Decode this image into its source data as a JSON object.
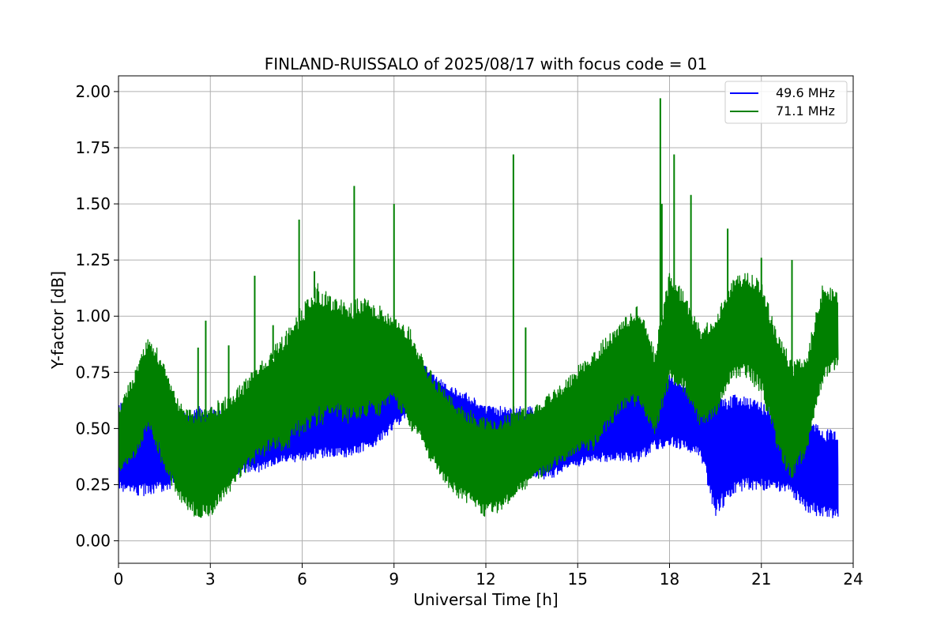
{
  "chart_data": {
    "type": "line",
    "title": "FINLAND-RUISSALO of 2025/08/17 with focus code = 01",
    "xlabel": "Universal Time [h]",
    "ylabel": "Y-factor [dB]",
    "xlim": [
      0,
      24
    ],
    "ylim": [
      -0.1,
      2.07
    ],
    "x_ticks": [
      0,
      3,
      6,
      9,
      12,
      15,
      18,
      21,
      24
    ],
    "x_tick_labels": [
      "0",
      "3",
      "6",
      "9",
      "12",
      "15",
      "18",
      "21",
      "24"
    ],
    "y_ticks": [
      0.0,
      0.25,
      0.5,
      0.75,
      1.0,
      1.25,
      1.5,
      1.75,
      2.0
    ],
    "y_tick_labels": [
      "0.00",
      "0.25",
      "0.50",
      "0.75",
      "1.00",
      "1.25",
      "1.50",
      "1.75",
      "2.00"
    ],
    "grid": true,
    "legend_position": "top-right",
    "series": [
      {
        "name": "49.6 MHz",
        "color": "#0000ff",
        "t": [
          0,
          0.5,
          1,
          1.5,
          2,
          2.5,
          3,
          3.5,
          4,
          4.5,
          5,
          5.5,
          6,
          6.5,
          7,
          7.5,
          8,
          8.5,
          9,
          9.5,
          10,
          10.5,
          11,
          11.5,
          12,
          12.5,
          13,
          13.5,
          14,
          14.5,
          15,
          15.5,
          16,
          16.5,
          17,
          17.5,
          18,
          18.5,
          19,
          19.5,
          20,
          20.5,
          21,
          21.5,
          22,
          22.5,
          23,
          23.5
        ],
        "lower": [
          0.22,
          0.2,
          0.2,
          0.22,
          0.25,
          0.25,
          0.25,
          0.27,
          0.3,
          0.3,
          0.33,
          0.35,
          0.35,
          0.37,
          0.37,
          0.37,
          0.4,
          0.43,
          0.5,
          0.55,
          0.6,
          0.5,
          0.45,
          0.35,
          0.3,
          0.27,
          0.27,
          0.27,
          0.27,
          0.3,
          0.33,
          0.35,
          0.35,
          0.35,
          0.35,
          0.4,
          0.42,
          0.4,
          0.38,
          0.1,
          0.2,
          0.22,
          0.22,
          0.22,
          0.2,
          0.12,
          0.1,
          0.1
        ],
        "upper": [
          0.62,
          0.6,
          0.6,
          0.57,
          0.57,
          0.6,
          0.6,
          0.58,
          0.58,
          0.6,
          0.62,
          0.63,
          0.65,
          0.7,
          0.7,
          0.7,
          0.7,
          0.75,
          0.8,
          0.78,
          0.78,
          0.72,
          0.68,
          0.65,
          0.6,
          0.6,
          0.6,
          0.6,
          0.58,
          0.58,
          0.6,
          0.62,
          0.67,
          0.67,
          0.7,
          0.75,
          0.75,
          0.72,
          0.7,
          0.65,
          0.65,
          0.65,
          0.62,
          0.58,
          0.55,
          0.55,
          0.5,
          0.5
        ],
        "spikes": [],
        "t_end": 23.5
      },
      {
        "name": "71.1 MHz",
        "color": "#008000",
        "t": [
          0,
          0.5,
          1,
          1.5,
          2,
          2.5,
          3,
          3.5,
          4,
          4.5,
          5,
          5.5,
          6,
          6.5,
          7,
          7.5,
          8,
          8.5,
          9,
          9.5,
          10,
          10.5,
          11,
          11.5,
          12,
          12.5,
          13,
          13.5,
          14,
          14.5,
          15,
          15.5,
          16,
          16.5,
          17,
          17.5,
          18,
          18.5,
          19,
          19.5,
          20,
          20.5,
          21,
          21.5,
          22,
          22.5,
          23,
          23.5
        ],
        "lower": [
          0.3,
          0.35,
          0.5,
          0.3,
          0.18,
          0.1,
          0.1,
          0.18,
          0.28,
          0.35,
          0.4,
          0.4,
          0.48,
          0.5,
          0.55,
          0.52,
          0.55,
          0.55,
          0.62,
          0.5,
          0.4,
          0.28,
          0.2,
          0.15,
          0.1,
          0.12,
          0.2,
          0.25,
          0.3,
          0.35,
          0.38,
          0.4,
          0.5,
          0.58,
          0.6,
          0.45,
          0.7,
          0.65,
          0.5,
          0.55,
          0.7,
          0.72,
          0.65,
          0.4,
          0.25,
          0.4,
          0.7,
          0.78
        ],
        "upper": [
          0.6,
          0.75,
          0.92,
          0.8,
          0.62,
          0.58,
          0.6,
          0.65,
          0.7,
          0.78,
          0.85,
          0.95,
          1.05,
          1.15,
          1.1,
          1.05,
          1.1,
          1.05,
          1.0,
          0.95,
          0.8,
          0.7,
          0.62,
          0.58,
          0.55,
          0.55,
          0.58,
          0.6,
          0.65,
          0.7,
          0.78,
          0.85,
          0.92,
          1.0,
          1.05,
          0.85,
          1.2,
          1.1,
          0.95,
          1.0,
          1.15,
          1.22,
          1.15,
          0.95,
          0.8,
          0.85,
          1.15,
          1.1
        ],
        "spikes": [
          [
            2.6,
            0.86
          ],
          [
            2.85,
            0.98
          ],
          [
            3.6,
            0.87
          ],
          [
            4.45,
            1.18
          ],
          [
            5.05,
            0.96
          ],
          [
            5.9,
            1.43
          ],
          [
            6.4,
            1.2
          ],
          [
            7.7,
            1.58
          ],
          [
            9.0,
            1.5
          ],
          [
            12.9,
            1.72
          ],
          [
            13.3,
            0.95
          ],
          [
            17.7,
            1.97
          ],
          [
            17.75,
            1.5
          ],
          [
            18.15,
            1.72
          ],
          [
            18.7,
            1.54
          ],
          [
            19.9,
            1.39
          ],
          [
            21.0,
            1.26
          ],
          [
            22.0,
            1.25
          ]
        ],
        "t_end": 23.5
      }
    ]
  }
}
